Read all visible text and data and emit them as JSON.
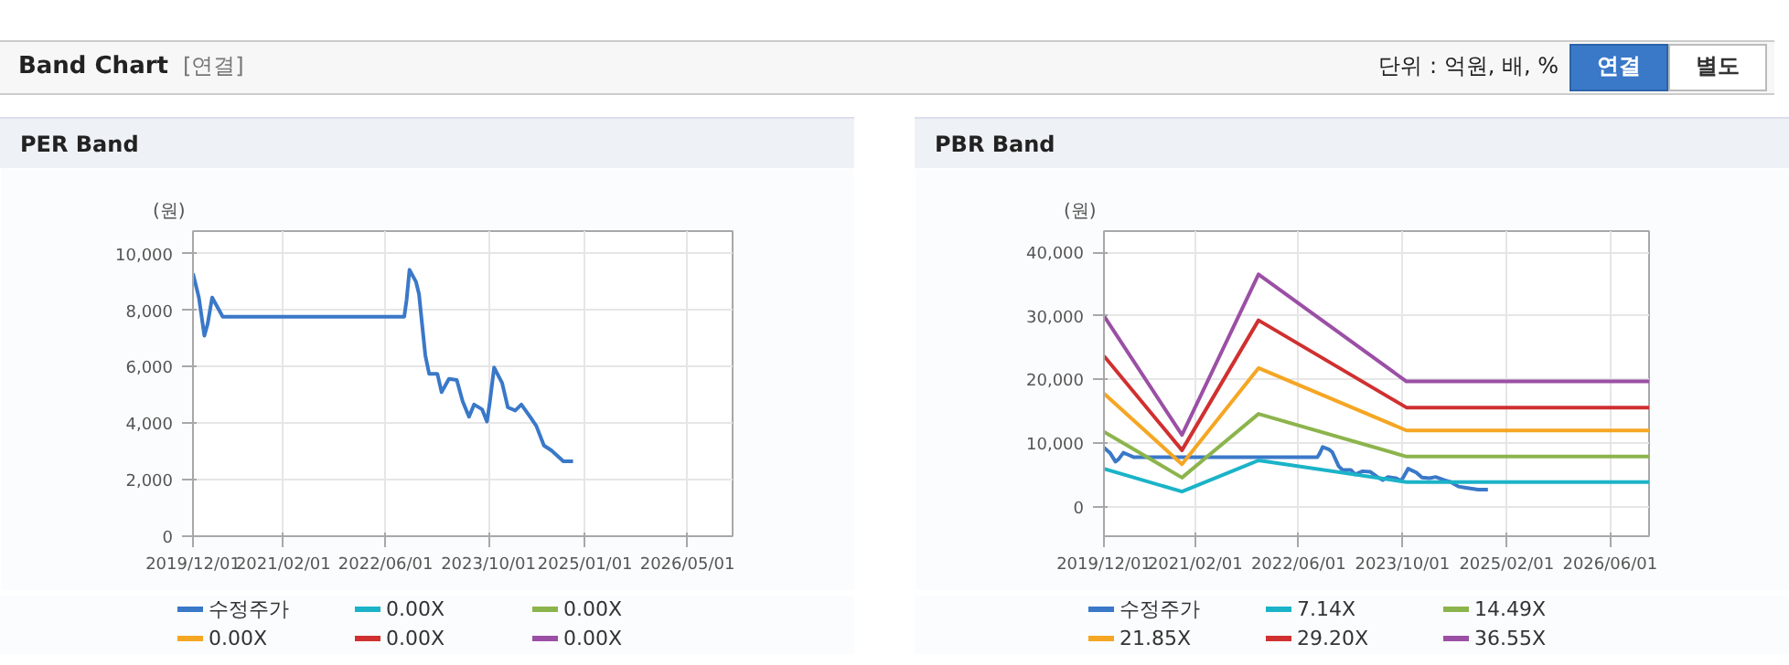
{
  "chart_data": [
    {
      "type": "line",
      "title": "PER Band",
      "ylabel": "(원)",
      "annotations": [
        "Band Chart",
        "[연결]",
        "단위 : 억원, 배, %",
        "연결",
        "별도"
      ],
      "x": [
        "2019-12-01",
        "2019-12-29",
        "2020-01-24",
        "2020-02-08",
        "2020-03-01",
        "2020-03-23",
        "2020-04-20",
        "2022-08-28",
        "2022-09-08",
        "2022-09-22",
        "2022-10-23",
        "2022-11-06",
        "2022-11-21",
        "2022-12-06",
        "2022-12-24",
        "2023-02-01",
        "2023-02-21",
        "2023-03-28",
        "2023-05-04",
        "2023-06-01",
        "2023-07-01",
        "2023-07-25",
        "2023-09-01",
        "2023-09-24",
        "2023-10-06",
        "2023-10-28",
        "2023-12-05",
        "2024-01-01",
        "2024-02-05",
        "2024-03-05",
        "2024-04-15",
        "2024-05-15",
        "2024-06-20",
        "2024-07-25",
        "2024-09-20",
        "2024-11-05"
      ],
      "series": [
        {
          "name": "수정주가",
          "color": "#3a78c8",
          "values": [
            9300,
            8450,
            7100,
            7500,
            8450,
            8150,
            7770,
            7770,
            8350,
            9430,
            9000,
            8570,
            7480,
            6400,
            5750,
            5750,
            5100,
            5570,
            5530,
            4770,
            4230,
            4660,
            4490,
            4060,
            4660,
            5970,
            5420,
            4560,
            4450,
            4660,
            4230,
            3900,
            3210,
            3040,
            2650,
            2650
          ]
        },
        {
          "name": "0.00X",
          "color": "#1bb3c8",
          "values": [
            null,
            null,
            null,
            null,
            null,
            null,
            null,
            null,
            null,
            null,
            null,
            null,
            null,
            null,
            null,
            null,
            null,
            null,
            null,
            null,
            null,
            null,
            null,
            null,
            null,
            null,
            null,
            null,
            null,
            null,
            null,
            null,
            null,
            null,
            null,
            null
          ]
        },
        {
          "name": "0.00X",
          "color": "#8cb44c",
          "values": [
            null,
            null,
            null,
            null,
            null,
            null,
            null,
            null,
            null,
            null,
            null,
            null,
            null,
            null,
            null,
            null,
            null,
            null,
            null,
            null,
            null,
            null,
            null,
            null,
            null,
            null,
            null,
            null,
            null,
            null,
            null,
            null,
            null,
            null,
            null,
            null
          ]
        },
        {
          "name": "0.00X",
          "color": "#f5a623",
          "values": [
            null,
            null,
            null,
            null,
            null,
            null,
            null,
            null,
            null,
            null,
            null,
            null,
            null,
            null,
            null,
            null,
            null,
            null,
            null,
            null,
            null,
            null,
            null,
            null,
            null,
            null,
            null,
            null,
            null,
            null,
            null,
            null,
            null,
            null,
            null,
            null
          ]
        },
        {
          "name": "0.00X",
          "color": "#d03030",
          "values": [
            null,
            null,
            null,
            null,
            null,
            null,
            null,
            null,
            null,
            null,
            null,
            null,
            null,
            null,
            null,
            null,
            null,
            null,
            null,
            null,
            null,
            null,
            null,
            null,
            null,
            null,
            null,
            null,
            null,
            null,
            null,
            null,
            null,
            null,
            null,
            null
          ]
        },
        {
          "name": "0.00X",
          "color": "#9b4fa5",
          "values": [
            null,
            null,
            null,
            null,
            null,
            null,
            null,
            null,
            null,
            null,
            null,
            null,
            null,
            null,
            null,
            null,
            null,
            null,
            null,
            null,
            null,
            null,
            null,
            null,
            null,
            null,
            null,
            null,
            null,
            null,
            null,
            null,
            null,
            null,
            null,
            null
          ]
        }
      ],
      "xlim": [
        "2019-12-01",
        "2026-12-01"
      ],
      "xticks": [
        {
          "value": "2019-12-01",
          "label": "2019/12/01"
        },
        {
          "value": "2021-02-01",
          "label": "2021/02/01"
        },
        {
          "value": "2022-06-01",
          "label": "2022/06/01"
        },
        {
          "value": "2023-10-01",
          "label": "2023/10/01"
        },
        {
          "value": "2025-01-01",
          "label": "2025/01/01"
        },
        {
          "value": "2026-05-01",
          "label": "2026/05/01"
        }
      ],
      "ylim": [
        0,
        10800
      ],
      "yticks": [
        0,
        {
          "value": 2000,
          "label": "2,000"
        },
        {
          "value": 4000,
          "label": "4,000"
        },
        {
          "value": 6000,
          "label": "6,000"
        },
        {
          "value": 8000,
          "label": "8,000"
        },
        {
          "value": 10000,
          "label": "10,000"
        }
      ],
      "grid": true,
      "legend": "bottom"
    },
    {
      "type": "line",
      "title": "PBR Band",
      "ylabel": "(원)",
      "x": [
        "2019-12-01",
        "2019-12-29",
        "2020-01-24",
        "2020-02-08",
        "2020-03-01",
        "2020-03-23",
        "2020-04-20",
        "2022-08-28",
        "2022-09-08",
        "2022-09-22",
        "2022-10-23",
        "2022-11-06",
        "2022-11-21",
        "2022-12-06",
        "2022-12-24",
        "2023-02-01",
        "2023-02-21",
        "2023-03-28",
        "2023-05-04",
        "2023-06-01",
        "2023-07-01",
        "2023-07-25",
        "2023-09-01",
        "2023-09-24",
        "2023-10-06",
        "2023-10-28",
        "2023-12-05",
        "2024-01-01",
        "2024-02-05",
        "2024-03-05",
        "2024-04-15",
        "2024-05-15",
        "2024-06-20",
        "2024-07-25",
        "2024-09-20",
        "2024-11-05"
      ],
      "series": [
        {
          "name": "수정주가",
          "color": "#3a78c8",
          "values": [
            9300,
            8500,
            7100,
            7500,
            8500,
            8200,
            7800,
            7800,
            8400,
            9400,
            9000,
            8600,
            7500,
            6400,
            5800,
            5800,
            5100,
            5600,
            5500,
            4800,
            4200,
            4700,
            4500,
            4100,
            4700,
            6000,
            5400,
            4600,
            4500,
            4700,
            4200,
            3900,
            3200,
            3000,
            2700,
            2700
          ]
        },
        {
          "name": "7.14X",
          "color": "#1bb3c8",
          "x": [
            "2019-12-01",
            "2020-12-01",
            "2021-11-25",
            "2023-10-20",
            "2026-12-01"
          ],
          "values": [
            6000,
            2400,
            7300,
            3900,
            3900
          ]
        },
        {
          "name": "14.49X",
          "color": "#8cb44c",
          "x": [
            "2019-12-01",
            "2020-12-01",
            "2021-11-25",
            "2023-10-20",
            "2026-12-01"
          ],
          "values": [
            11800,
            4600,
            14600,
            7900,
            7900
          ]
        },
        {
          "name": "21.85X",
          "color": "#f5a623",
          "x": [
            "2019-12-01",
            "2020-12-01",
            "2021-11-25",
            "2023-10-20",
            "2026-12-01"
          ],
          "values": [
            17800,
            6700,
            21800,
            12000,
            12000
          ]
        },
        {
          "name": "29.20X",
          "color": "#d03030",
          "x": [
            "2019-12-01",
            "2020-12-01",
            "2021-11-25",
            "2023-10-20",
            "2026-12-01"
          ],
          "values": [
            23700,
            8900,
            29300,
            15600,
            15600
          ]
        },
        {
          "name": "36.55X",
          "color": "#9b4fa5",
          "x": [
            "2019-12-01",
            "2020-12-01",
            "2021-11-25",
            "2023-10-20",
            "2026-12-01"
          ],
          "values": [
            30000,
            11300,
            36500,
            19700,
            19700
          ]
        }
      ],
      "xlim": [
        "2019-12-01",
        "2026-12-01"
      ],
      "xticks": [
        {
          "value": "2019-12-01",
          "label": "2019/12/01"
        },
        {
          "value": "2021-02-01",
          "label": "2021/02/01"
        },
        {
          "value": "2022-06-01",
          "label": "2022/06/01"
        },
        {
          "value": "2023-10-01",
          "label": "2023/10/01"
        },
        {
          "value": "2025-02-01",
          "label": "2025/02/01"
        },
        {
          "value": "2026-06-01",
          "label": "2026/06/01"
        }
      ],
      "ylim": [
        -4600,
        43300
      ],
      "yticks": [
        0,
        {
          "value": 10000,
          "label": "10,000"
        },
        {
          "value": 20000,
          "label": "20,000"
        },
        {
          "value": 30000,
          "label": "30,000"
        },
        {
          "value": 40000,
          "label": "40,000"
        }
      ],
      "grid": true,
      "legend": "bottom"
    }
  ]
}
